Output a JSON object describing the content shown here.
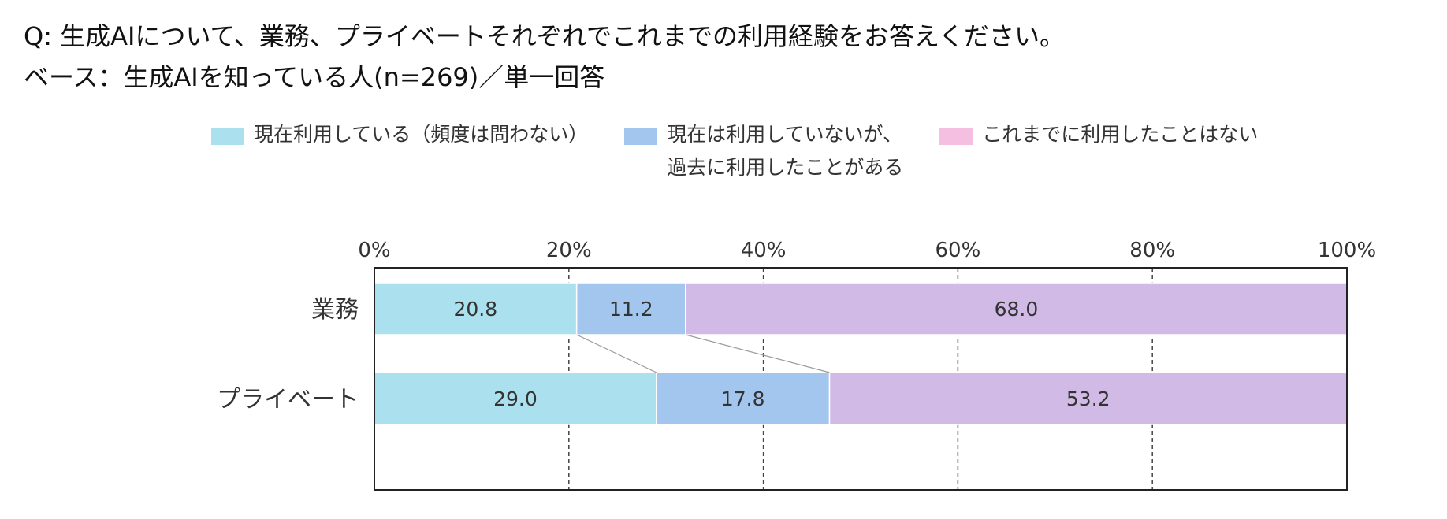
{
  "question": "Q:  生成AIについて、業務、プライベートそれぞれでこれまでの利用経験をお答えください。",
  "base": "ベース：生成AIを知っている人(n=269)／単一回答",
  "chart_data": {
    "type": "bar",
    "orientation": "horizontal",
    "stacked": true,
    "categories": [
      "業務",
      "プライベート"
    ],
    "series": [
      {
        "name": "現在利用している（頻度は問わない）",
        "color": "#abe1ee",
        "values": [
          20.8,
          29.0
        ]
      },
      {
        "name": "現在は利用していないが、\n過去に利用したことがある",
        "color": "#a3c6ee",
        "values": [
          11.2,
          17.8
        ]
      },
      {
        "name": "これまでに利用したことはない",
        "color": "#d1bae6",
        "values": [
          68.0,
          53.2
        ]
      }
    ],
    "xlim": [
      0,
      100
    ],
    "xticks": [
      "0%",
      "20%",
      "40%",
      "60%",
      "80%",
      "100%"
    ],
    "xtick_values": [
      0,
      20,
      40,
      60,
      80,
      100
    ],
    "grid": true,
    "legend_position": "top",
    "connector_lines": true,
    "legend_swatch_colors": [
      "#abe1ee",
      "#a3c6ee",
      "#f4bfe0"
    ]
  }
}
